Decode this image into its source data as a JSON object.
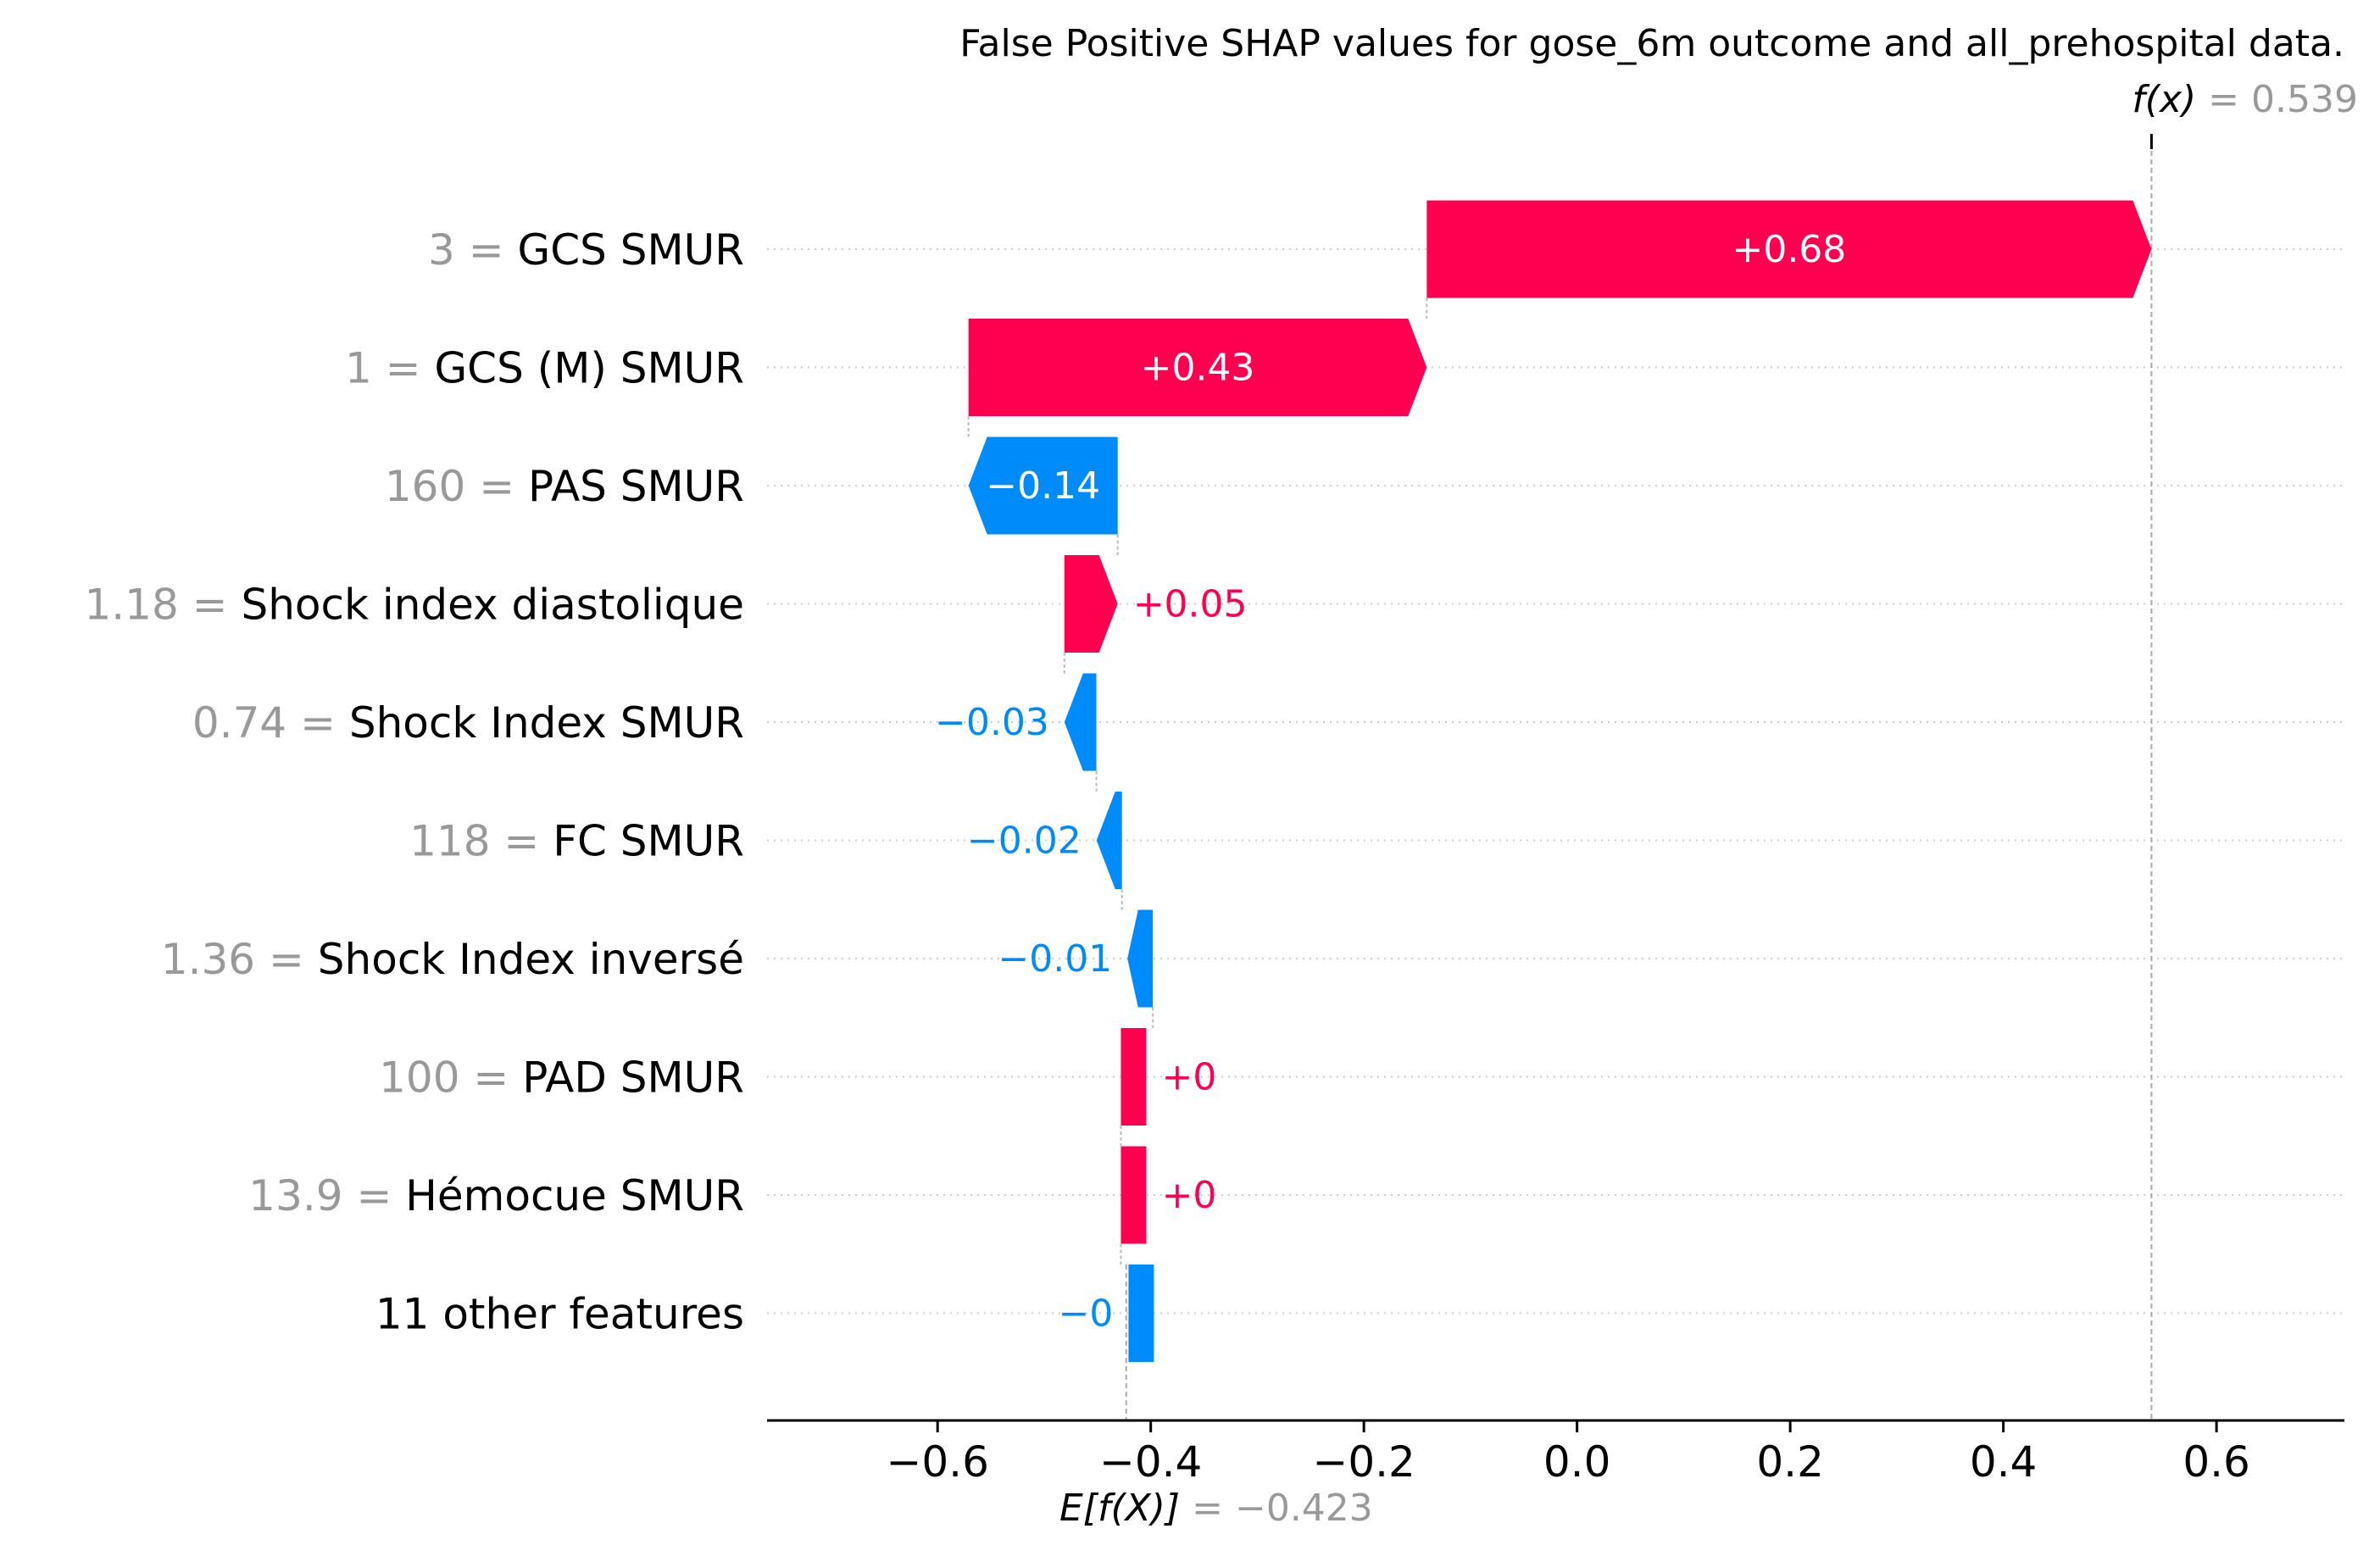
{
  "chart_data": {
    "type": "waterfall",
    "title": "False Positive SHAP values for gose_6m outcome and all_prehospital data.",
    "fx_symbol": "f(x)",
    "fx_value": "0.539",
    "base_symbol": "E[f(X)]",
    "base_value": "−0.423",
    "fx_numeric": 0.539,
    "base_numeric": -0.423,
    "xlim": [
      -0.76,
      0.72
    ],
    "xticks": [
      -0.6,
      -0.4,
      -0.2,
      0.0,
      0.2,
      0.4,
      0.6
    ],
    "xtick_labels": [
      "−0.6",
      "−0.4",
      "−0.2",
      "0.0",
      "0.2",
      "0.4",
      "0.6"
    ],
    "colors": {
      "positive": "#ff0051",
      "negative": "#008bfb",
      "value_gray": "#999999",
      "text": "#000000"
    },
    "rows": [
      {
        "value_text": "3",
        "feature": "GCS SMUR",
        "shap": 0.68,
        "label": "+0.68",
        "start": -0.141
      },
      {
        "value_text": "1",
        "feature": "GCS (M) SMUR",
        "shap": 0.43,
        "label": "+0.43",
        "start": -0.571
      },
      {
        "value_text": "160",
        "feature": "PAS  SMUR",
        "shap": -0.14,
        "label": "−0.14",
        "start": -0.431
      },
      {
        "value_text": "1.18",
        "feature": "Shock index diastolique",
        "shap": 0.05,
        "label": "+0.05",
        "start": -0.481
      },
      {
        "value_text": "0.74",
        "feature": "Shock Index SMUR",
        "shap": -0.03,
        "label": "−0.03",
        "start": -0.451
      },
      {
        "value_text": "118",
        "feature": "FC SMUR",
        "shap": -0.02,
        "label": "−0.02",
        "start": -0.427
      },
      {
        "value_text": "1.36",
        "feature": "Shock Index inversé",
        "shap": -0.01,
        "label": "−0.01",
        "start": -0.398
      },
      {
        "value_text": "100",
        "feature": "PAD  SMUR",
        "shap": 0.0,
        "label": "+0",
        "start": -0.428
      },
      {
        "value_text": "13.9",
        "feature": "Hémocue SMUR",
        "shap": 0.0,
        "label": "+0",
        "start": -0.428
      },
      {
        "value_text": "",
        "feature": "11 other features",
        "shap": 0.0,
        "label": "−0",
        "start": -0.397
      }
    ]
  }
}
